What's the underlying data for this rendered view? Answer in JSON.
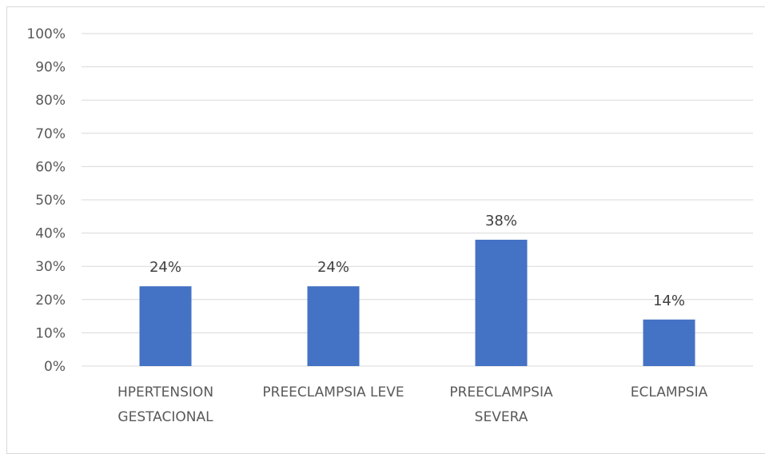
{
  "chart_data": {
    "type": "bar",
    "title": "",
    "xlabel": "",
    "ylabel": "",
    "categories": [
      [
        "HPERTENSION",
        "GESTACIONAL"
      ],
      [
        "PREECLAMPSIA LEVE"
      ],
      [
        "PREECLAMPSIA",
        "SEVERA"
      ],
      [
        "ECLAMPSIA"
      ]
    ],
    "values": [
      24,
      24,
      38,
      14
    ],
    "value_labels": [
      "24%",
      "24%",
      "38%",
      "14%"
    ],
    "ylim": [
      0,
      100
    ],
    "y_ticks": [
      0,
      10,
      20,
      30,
      40,
      50,
      60,
      70,
      80,
      90,
      100
    ],
    "y_tick_labels": [
      "0%",
      "10%",
      "20%",
      "30%",
      "40%",
      "50%",
      "60%",
      "70%",
      "80%",
      "90%",
      "100%"
    ],
    "grid": true,
    "legend": "none",
    "bar_color": "#4472C4"
  }
}
